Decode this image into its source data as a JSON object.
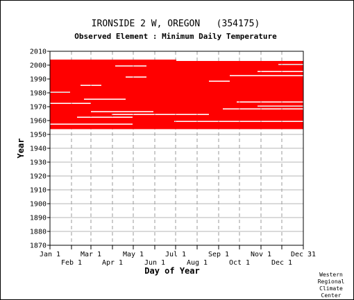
{
  "chart_data": {
    "type": "heatmap",
    "title": "IRONSIDE 2 W, OREGON   (354175)",
    "subtitle": "Observed Element : Minimum Daily Temperature",
    "xlabel": "Day of Year",
    "ylabel": "Year",
    "xlim": [
      1,
      366
    ],
    "ylim": [
      1870,
      2010
    ],
    "x_ticks_upper": [
      {
        "label": "Jan 1",
        "day": 1
      },
      {
        "label": "Mar 1",
        "day": 60
      },
      {
        "label": "May 1",
        "day": 121
      },
      {
        "label": "Jul 1",
        "day": 182
      },
      {
        "label": "Sep 1",
        "day": 244
      },
      {
        "label": "Nov 1",
        "day": 305
      },
      {
        "label": "Dec 31",
        "day": 366
      }
    ],
    "x_ticks_lower": [
      {
        "label": "Feb 1",
        "day": 32
      },
      {
        "label": "Apr 1",
        "day": 91
      },
      {
        "label": "Jun 1",
        "day": 152
      },
      {
        "label": "Aug 1",
        "day": 213
      },
      {
        "label": "Oct 1",
        "day": 274
      },
      {
        "label": "Dec 1",
        "day": 335
      }
    ],
    "y_ticks": [
      1870,
      1880,
      1890,
      1900,
      1910,
      1920,
      1930,
      1940,
      1950,
      1960,
      1970,
      1980,
      1990,
      2000,
      2010
    ],
    "grid": true,
    "mark_color": "#ff0000",
    "observed_year_range": [
      1954,
      2003
    ],
    "gaps": [
      {
        "year": 1957,
        "from_day": 1,
        "to_day": 120
      },
      {
        "year": 1959,
        "from_day": 180,
        "to_day": 366
      },
      {
        "year": 1962,
        "from_day": 40,
        "to_day": 120
      },
      {
        "year": 1964,
        "from_day": 90,
        "to_day": 230
      },
      {
        "year": 1966,
        "from_day": 60,
        "to_day": 150
      },
      {
        "year": 1968,
        "from_day": 250,
        "to_day": 366
      },
      {
        "year": 1970,
        "from_day": 300,
        "to_day": 366
      },
      {
        "year": 1972,
        "from_day": 1,
        "to_day": 60
      },
      {
        "year": 1973,
        "from_day": 270,
        "to_day": 366
      },
      {
        "year": 1975,
        "from_day": 50,
        "to_day": 110
      },
      {
        "year": 1980,
        "from_day": 1,
        "to_day": 30
      },
      {
        "year": 1985,
        "from_day": 45,
        "to_day": 75
      },
      {
        "year": 1988,
        "from_day": 230,
        "to_day": 260
      },
      {
        "year": 1991,
        "from_day": 110,
        "to_day": 140
      },
      {
        "year": 1992,
        "from_day": 260,
        "to_day": 366
      },
      {
        "year": 1995,
        "from_day": 300,
        "to_day": 366
      },
      {
        "year": 1999,
        "from_day": 95,
        "to_day": 140
      },
      {
        "year": 2000,
        "from_day": 330,
        "to_day": 366
      },
      {
        "year": 2003,
        "from_day": 183,
        "to_day": 366
      }
    ],
    "credit_lines": [
      "Western",
      "Regional",
      "Climate",
      "Center"
    ]
  }
}
